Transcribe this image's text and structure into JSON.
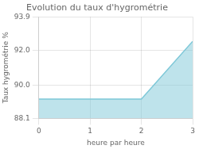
{
  "chart_data": {
    "type": "area",
    "title": "Evolution du taux d'hygrométrie",
    "x_label": "heure par heure",
    "y_label": "Taux hygrométrie %",
    "x": [
      0,
      2,
      3
    ],
    "values": [
      89.2,
      89.2,
      92.5
    ],
    "color": "#7ec8d8",
    "xlim": [
      0,
      3
    ],
    "xticks": [
      0,
      1,
      2,
      3
    ],
    "ylim": [
      88.1,
      93.9
    ],
    "yticks": [
      88.1,
      {
        "value": 90.0,
        "label": "90.0"
      },
      {
        "value": 92.0,
        "label": "92.0"
      },
      93.9
    ],
    "grid": true
  }
}
